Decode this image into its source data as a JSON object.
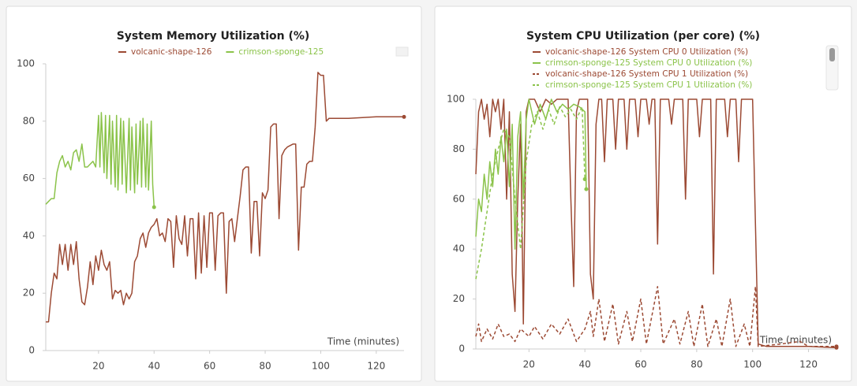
{
  "chart_data": [
    {
      "type": "line",
      "title": "System Memory Utilization (%)",
      "x_label": "Time (minutes)",
      "xlim": [
        1,
        130
      ],
      "xticks": [
        20,
        40,
        60,
        80,
        100,
        120
      ],
      "ylim": [
        0,
        100
      ],
      "yticks": [
        0,
        20,
        40,
        60,
        80,
        100
      ],
      "grid": false,
      "legend": "top",
      "series": [
        {
          "name": "volcanic-shape-126",
          "color": "#9c4a34",
          "dash": false,
          "x": [
            1,
            2,
            3,
            4,
            5,
            6,
            7,
            8,
            9,
            10,
            11,
            12,
            13,
            14,
            15,
            16,
            17,
            18,
            19,
            20,
            21,
            22,
            23,
            24,
            25,
            26,
            27,
            28,
            29,
            30,
            31,
            32,
            33,
            34,
            35,
            36,
            37,
            38,
            39,
            40,
            41,
            42,
            43,
            44,
            45,
            46,
            47,
            48,
            49,
            50,
            51,
            52,
            53,
            54,
            55,
            56,
            57,
            58,
            59,
            60,
            61,
            62,
            63,
            64,
            65,
            66,
            67,
            68,
            69,
            70,
            71,
            72,
            73,
            74,
            75,
            76,
            77,
            78,
            79,
            80,
            81,
            82,
            83,
            84,
            85,
            86,
            87,
            88,
            90,
            91,
            92,
            93,
            94,
            95,
            96,
            97,
            98,
            99,
            100,
            101,
            102,
            103,
            110,
            120,
            130
          ],
          "values": [
            10,
            10,
            20,
            27,
            25,
            37,
            30,
            37,
            28,
            37,
            30,
            38,
            25,
            17,
            16,
            22,
            31,
            23,
            33,
            28,
            35,
            30,
            28,
            31,
            18,
            21,
            20,
            21,
            16,
            20,
            18,
            20,
            31,
            33,
            39,
            41,
            36,
            41,
            43,
            44,
            46,
            40,
            41,
            38,
            46,
            45,
            29,
            47,
            39,
            37,
            47,
            33,
            46,
            46,
            25,
            48,
            27,
            47,
            29,
            48,
            48,
            28,
            47,
            48,
            48,
            20,
            45,
            46,
            38,
            46,
            54,
            63,
            64,
            64,
            34,
            52,
            52,
            33,
            55,
            53,
            56,
            78,
            79,
            79,
            46,
            68,
            70,
            71,
            72,
            72,
            35,
            57,
            57,
            65,
            66,
            66,
            78,
            97,
            96,
            96,
            80,
            81,
            81,
            81.5,
            81.5
          ]
        },
        {
          "name": "crimson-sponge-125",
          "color": "#8bc34a",
          "dash": false,
          "x": [
            1,
            2,
            3,
            4,
            5,
            6,
            7,
            8,
            9,
            10,
            11,
            12,
            13,
            14,
            15,
            16,
            17,
            18,
            19,
            20,
            20.5,
            21,
            22,
            22.5,
            23,
            24,
            24.5,
            25,
            26,
            26.5,
            27,
            28,
            28.5,
            29,
            30,
            31,
            31.5,
            32,
            33,
            33.5,
            34,
            35,
            35.5,
            36,
            37,
            37.5,
            38,
            39,
            39.5,
            40
          ],
          "values": [
            51,
            52,
            53,
            53,
            62,
            66,
            68,
            64,
            66,
            63,
            69,
            70,
            66,
            72,
            64,
            64,
            65,
            66,
            64,
            82,
            64,
            83,
            62,
            82,
            60,
            82,
            58,
            80,
            57,
            82,
            56,
            81,
            58,
            80,
            55,
            81,
            56,
            78,
            55,
            79,
            58,
            80,
            57,
            81,
            57,
            79,
            56,
            80,
            58,
            50
          ]
        }
      ]
    },
    {
      "type": "line",
      "title": "System CPU Utilization (per core) (%)",
      "x_label": "Time (minutes)",
      "xlim": [
        1,
        130
      ],
      "xticks": [
        20,
        40,
        60,
        80,
        100,
        120
      ],
      "ylim": [
        0,
        100
      ],
      "yticks": [
        0,
        20,
        40,
        60,
        80,
        100
      ],
      "grid": false,
      "legend": "top",
      "series": [
        {
          "name": "volcanic-shape-126 System CPU 0 Utilization (%)",
          "color": "#9c4a34",
          "dash": false,
          "x": [
            1,
            2,
            3,
            4,
            5,
            6,
            7,
            8,
            9,
            10,
            11,
            12,
            13,
            14,
            15,
            16,
            17,
            18,
            19,
            20,
            22,
            24,
            26,
            28,
            30,
            32,
            34,
            35,
            36,
            37,
            38,
            40,
            41,
            42,
            43,
            44,
            45,
            46,
            47,
            48,
            50,
            51,
            52,
            54,
            55,
            56,
            58,
            59,
            60,
            62,
            63,
            64,
            65,
            66,
            67,
            70,
            71,
            72,
            75,
            76,
            77,
            80,
            81,
            82,
            85,
            86,
            87,
            90,
            91,
            92,
            94,
            95,
            96,
            100,
            101,
            102,
            105,
            110,
            120,
            130
          ],
          "values": [
            70,
            95,
            100,
            92,
            98,
            85,
            100,
            95,
            100,
            88,
            100,
            60,
            95,
            30,
            15,
            60,
            90,
            10,
            95,
            100,
            100,
            95,
            100,
            98,
            100,
            100,
            100,
            60,
            25,
            95,
            100,
            100,
            100,
            30,
            20,
            90,
            100,
            100,
            75,
            100,
            100,
            80,
            100,
            100,
            80,
            100,
            100,
            85,
            100,
            100,
            90,
            100,
            100,
            42,
            100,
            100,
            90,
            100,
            100,
            60,
            100,
            100,
            85,
            100,
            100,
            30,
            100,
            100,
            85,
            100,
            100,
            75,
            100,
            100,
            50,
            2,
            1,
            1,
            1,
            0.5
          ]
        },
        {
          "name": "crimson-sponge-125 System CPU 0 Utilization (%)",
          "color": "#8bc34a",
          "dash": false,
          "x": [
            1,
            2,
            3,
            4,
            5,
            6,
            7,
            8,
            9,
            10,
            11,
            12,
            13,
            14,
            15,
            16,
            17,
            18,
            19,
            20,
            22,
            24,
            26,
            28,
            30,
            32,
            34,
            36,
            38,
            40,
            40.5
          ],
          "values": [
            45,
            60,
            55,
            70,
            60,
            75,
            65,
            80,
            70,
            85,
            75,
            88,
            65,
            90,
            40,
            85,
            95,
            60,
            92,
            100,
            90,
            98,
            92,
            100,
            95,
            98,
            96,
            98,
            97,
            95,
            64
          ]
        },
        {
          "name": "volcanic-shape-126 System CPU 1 Utilization (%)",
          "color": "#9c4a34",
          "dash": true,
          "x": [
            1,
            2,
            3,
            5,
            7,
            9,
            11,
            13,
            15,
            17,
            20,
            22,
            25,
            28,
            31,
            34,
            37,
            40,
            42,
            43,
            45,
            47,
            50,
            52,
            55,
            57,
            60,
            62,
            66,
            68,
            72,
            74,
            77,
            79,
            82,
            84,
            87,
            89,
            92,
            94,
            97,
            99,
            101,
            102,
            110,
            117,
            120,
            130
          ],
          "values": [
            5,
            10,
            3,
            8,
            4,
            10,
            5,
            6,
            3,
            8,
            5,
            9,
            4,
            10,
            6,
            12,
            3,
            8,
            15,
            5,
            20,
            3,
            18,
            2,
            15,
            3,
            20,
            2,
            25,
            2,
            12,
            2,
            15,
            1,
            18,
            1,
            12,
            1,
            20,
            1,
            10,
            1,
            25,
            1,
            2,
            3,
            1,
            1
          ]
        },
        {
          "name": "crimson-sponge-125 System CPU 1 Utilization (%)",
          "color": "#8bc34a",
          "dash": true,
          "x": [
            1,
            3,
            5,
            7,
            9,
            11,
            13,
            15,
            17,
            19,
            21,
            23,
            25,
            27,
            29,
            31,
            33,
            35,
            37,
            39,
            40
          ],
          "values": [
            28,
            40,
            55,
            70,
            80,
            88,
            85,
            60,
            40,
            75,
            90,
            95,
            88,
            96,
            90,
            97,
            93,
            96,
            92,
            97,
            68
          ]
        }
      ]
    }
  ]
}
